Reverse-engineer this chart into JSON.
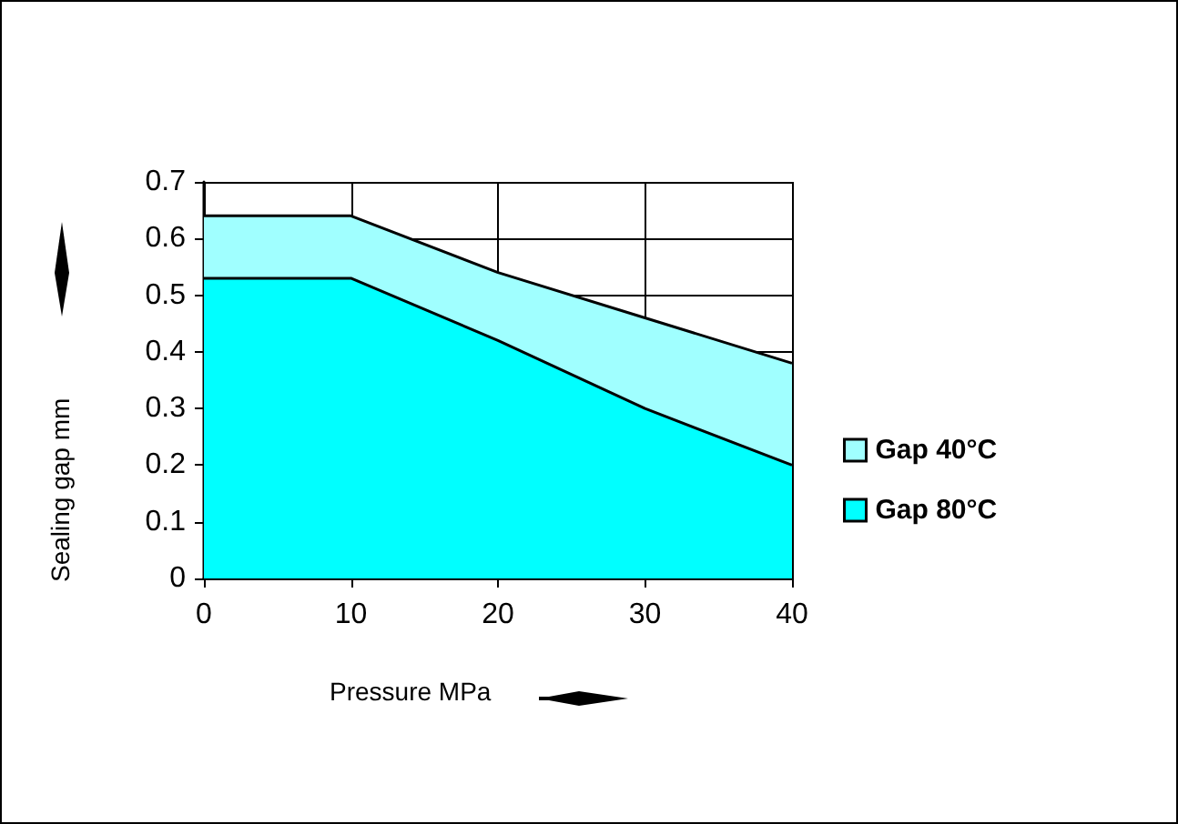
{
  "chart_data": {
    "type": "area",
    "xlabel": "Pressure MPa",
    "ylabel": "Sealing gap mm",
    "x": [
      0,
      10,
      20,
      30,
      40
    ],
    "series": [
      {
        "name": "Gap 40°C",
        "color": "#a0ffff",
        "values": [
          0.64,
          0.64,
          0.54,
          0.46,
          0.38
        ]
      },
      {
        "name": "Gap 80°C",
        "color": "#00ffff",
        "values": [
          0.53,
          0.53,
          0.42,
          0.3,
          0.2
        ]
      }
    ],
    "xlim": [
      0,
      40
    ],
    "xticks": [
      0,
      10,
      20,
      30,
      40
    ],
    "ylim": [
      0,
      0.7
    ],
    "yticks": [
      0,
      0.1,
      0.2,
      0.3,
      0.4,
      0.5,
      0.6,
      0.7
    ],
    "grid": true,
    "legend": "right"
  }
}
